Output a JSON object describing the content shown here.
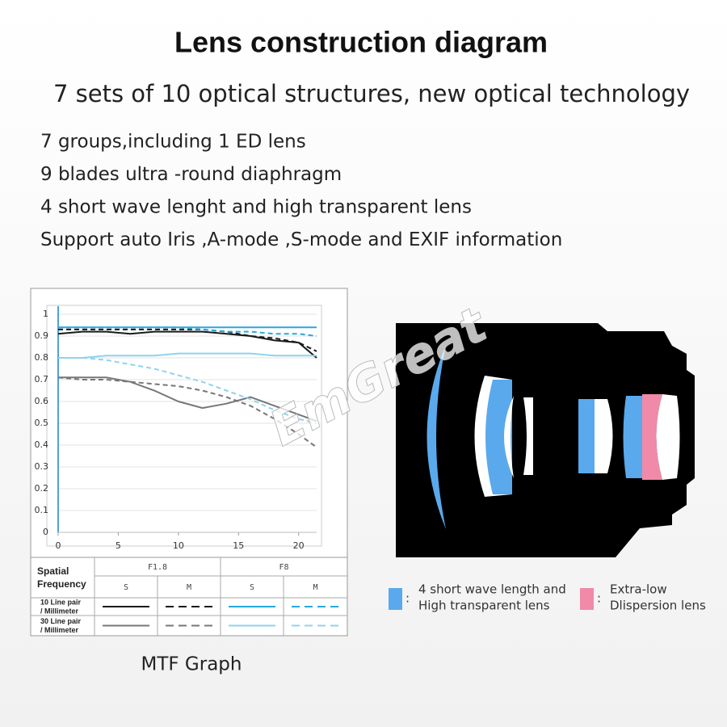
{
  "header": {
    "title": "Lens construction diagram",
    "subtitle": "7 sets of 10 optical structures, new optical technology",
    "features": [
      "7 groups,including 1 ED lens",
      "9 blades ultra -round diaphragm",
      "4 short wave lenght and high transparent lens",
      "Support auto Iris  ,A-mode ,S-mode  and EXIF information"
    ]
  },
  "chart_data": {
    "type": "line",
    "caption": "MTF Graph",
    "x": [
      0,
      2,
      4,
      6,
      8,
      10,
      12,
      14,
      16,
      18,
      20,
      21.5
    ],
    "xlim": [
      0,
      21.5
    ],
    "xticks": [
      0,
      5,
      10,
      15,
      20
    ],
    "ylim": [
      0,
      1
    ],
    "yticks": [
      0,
      0.1,
      0.2,
      0.3,
      0.4,
      0.5,
      0.6,
      0.7,
      0.8,
      0.9,
      1
    ],
    "grid": true,
    "series": [
      {
        "color": "#1a1a1a",
        "dash": false,
        "values": [
          0.91,
          0.92,
          0.92,
          0.91,
          0.92,
          0.92,
          0.92,
          0.91,
          0.9,
          0.88,
          0.87,
          0.8
        ]
      },
      {
        "color": "#1a1a1a",
        "dash": true,
        "values": [
          0.93,
          0.93,
          0.93,
          0.93,
          0.93,
          0.93,
          0.93,
          0.92,
          0.9,
          0.89,
          0.87,
          0.83
        ]
      },
      {
        "color": "#29a8e0",
        "dash": false,
        "values": [
          0.94,
          0.94,
          0.94,
          0.94,
          0.94,
          0.94,
          0.94,
          0.94,
          0.94,
          0.94,
          0.94,
          0.94
        ]
      },
      {
        "color": "#29a8e0",
        "dash": true,
        "values": [
          0.94,
          0.94,
          0.94,
          0.94,
          0.94,
          0.94,
          0.93,
          0.92,
          0.92,
          0.91,
          0.91,
          0.9
        ]
      },
      {
        "color": "#777777",
        "dash": false,
        "values": [
          0.71,
          0.71,
          0.71,
          0.69,
          0.65,
          0.6,
          0.57,
          0.59,
          0.62,
          0.58,
          0.54,
          0.51
        ]
      },
      {
        "color": "#777777",
        "dash": true,
        "values": [
          0.71,
          0.7,
          0.7,
          0.69,
          0.68,
          0.67,
          0.65,
          0.62,
          0.58,
          0.52,
          0.45,
          0.39
        ]
      },
      {
        "color": "#8fd3ec",
        "dash": false,
        "values": [
          0.8,
          0.8,
          0.81,
          0.81,
          0.81,
          0.82,
          0.82,
          0.82,
          0.82,
          0.81,
          0.81,
          0.81
        ]
      },
      {
        "color": "#8fd3ec",
        "dash": true,
        "values": [
          0.8,
          0.8,
          0.79,
          0.77,
          0.75,
          0.72,
          0.69,
          0.65,
          0.61,
          0.56,
          0.52,
          0.5
        ]
      }
    ]
  },
  "legend_table": {
    "corner": "Spatial Frequency",
    "apertures": [
      "F1.8",
      "F8"
    ],
    "columns": [
      "S",
      "M",
      "S",
      "M"
    ],
    "rows": [
      [
        "10 Line pair",
        "/ Millimeter"
      ],
      [
        "30 Line pair",
        "/ Millimeter"
      ]
    ]
  },
  "watermark": "EmGreat",
  "lens_legend": {
    "separator": ":",
    "items": [
      {
        "color": "#5aa9ec",
        "lines": [
          "4 short wave length and",
          "High transparent lens"
        ]
      },
      {
        "color": "#f08aa8",
        "lines": [
          "Extra-low",
          "Dlispersion lens"
        ]
      }
    ]
  }
}
